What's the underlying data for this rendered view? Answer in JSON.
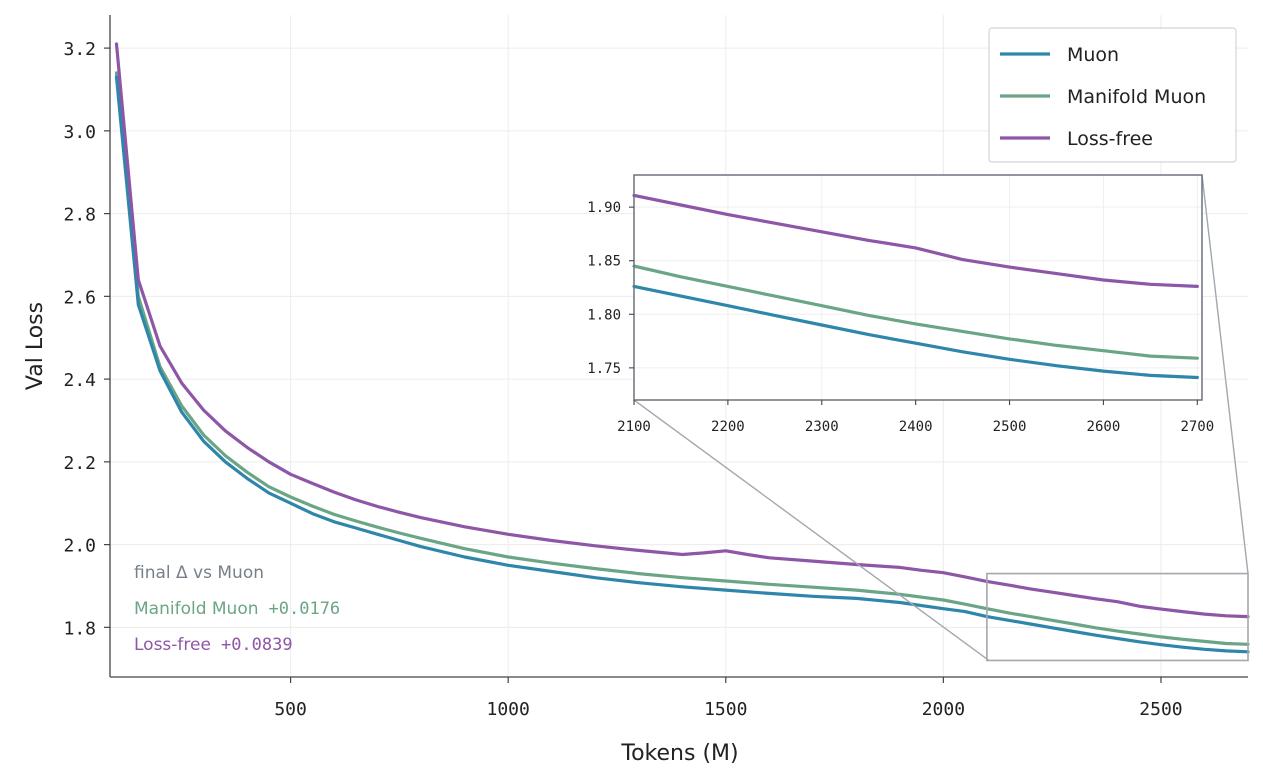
{
  "chart_data": {
    "type": "line",
    "xlabel": "Tokens (M)",
    "ylabel": "Val Loss",
    "xlim": [
      85,
      2700
    ],
    "ylim": [
      1.68,
      3.28
    ],
    "xticks": [
      500,
      1000,
      1500,
      2000,
      2500
    ],
    "yticks": [
      1.8,
      2.0,
      2.2,
      2.4,
      2.6,
      2.8,
      3.0,
      3.2
    ],
    "grid": true,
    "legend_position": "top-right",
    "series": [
      {
        "name": "Muon",
        "color": "#2e86ab",
        "x": [
          100,
          150,
          200,
          250,
          300,
          350,
          400,
          450,
          500,
          550,
          600,
          650,
          700,
          750,
          800,
          900,
          1000,
          1100,
          1200,
          1300,
          1400,
          1500,
          1600,
          1700,
          1800,
          1900,
          2000,
          2050,
          2100,
          2150,
          2200,
          2250,
          2300,
          2350,
          2400,
          2450,
          2500,
          2550,
          2600,
          2650,
          2700
        ],
        "values": [
          3.13,
          2.58,
          2.42,
          2.32,
          2.25,
          2.2,
          2.16,
          2.125,
          2.1,
          2.075,
          2.055,
          2.04,
          2.025,
          2.01,
          1.995,
          1.97,
          1.95,
          1.935,
          1.92,
          1.908,
          1.898,
          1.89,
          1.882,
          1.875,
          1.87,
          1.86,
          1.845,
          1.838,
          1.826,
          1.817,
          1.808,
          1.799,
          1.79,
          1.781,
          1.773,
          1.765,
          1.758,
          1.752,
          1.747,
          1.743,
          1.741
        ]
      },
      {
        "name": "Manifold Muon",
        "color": "#6aa586",
        "x": [
          100,
          150,
          200,
          250,
          300,
          350,
          400,
          450,
          500,
          550,
          600,
          650,
          700,
          750,
          800,
          900,
          1000,
          1100,
          1200,
          1300,
          1400,
          1500,
          1600,
          1700,
          1800,
          1900,
          2000,
          2050,
          2100,
          2150,
          2200,
          2250,
          2300,
          2350,
          2400,
          2450,
          2500,
          2550,
          2600,
          2650,
          2700
        ],
        "values": [
          3.14,
          2.6,
          2.43,
          2.335,
          2.265,
          2.215,
          2.175,
          2.14,
          2.115,
          2.093,
          2.073,
          2.057,
          2.042,
          2.028,
          2.015,
          1.99,
          1.97,
          1.955,
          1.942,
          1.93,
          1.92,
          1.912,
          1.904,
          1.897,
          1.89,
          1.88,
          1.866,
          1.856,
          1.845,
          1.835,
          1.826,
          1.817,
          1.808,
          1.799,
          1.791,
          1.784,
          1.777,
          1.771,
          1.766,
          1.761,
          1.759
        ]
      },
      {
        "name": "Loss-free",
        "color": "#8e56a6",
        "x": [
          100,
          150,
          200,
          250,
          300,
          350,
          400,
          450,
          500,
          550,
          600,
          650,
          700,
          750,
          800,
          900,
          1000,
          1100,
          1200,
          1300,
          1400,
          1450,
          1500,
          1550,
          1600,
          1700,
          1800,
          1900,
          1950,
          2000,
          2050,
          2100,
          2150,
          2200,
          2250,
          2300,
          2350,
          2400,
          2450,
          2500,
          2550,
          2600,
          2650,
          2700
        ],
        "values": [
          3.21,
          2.64,
          2.48,
          2.39,
          2.325,
          2.275,
          2.235,
          2.2,
          2.17,
          2.148,
          2.127,
          2.108,
          2.092,
          2.078,
          2.065,
          2.043,
          2.025,
          2.01,
          1.997,
          1.986,
          1.976,
          1.98,
          1.985,
          1.976,
          1.968,
          1.96,
          1.952,
          1.945,
          1.938,
          1.932,
          1.922,
          1.911,
          1.902,
          1.893,
          1.885,
          1.877,
          1.869,
          1.862,
          1.851,
          1.844,
          1.838,
          1.832,
          1.828,
          1.826
        ]
      }
    ],
    "inset": {
      "xlim": [
        2100,
        2705
      ],
      "ylim": [
        1.72,
        1.93
      ],
      "xticks": [
        2100,
        2200,
        2300,
        2400,
        2500,
        2600,
        2700
      ],
      "yticks": [
        1.75,
        1.8,
        1.85,
        1.9
      ]
    }
  },
  "annotation": {
    "title": "final Δ vs Muon",
    "line1_label": "Manifold Muon",
    "line1_value": "+0.0176",
    "line2_label": "Loss-free",
    "line2_value": "+0.0839"
  }
}
